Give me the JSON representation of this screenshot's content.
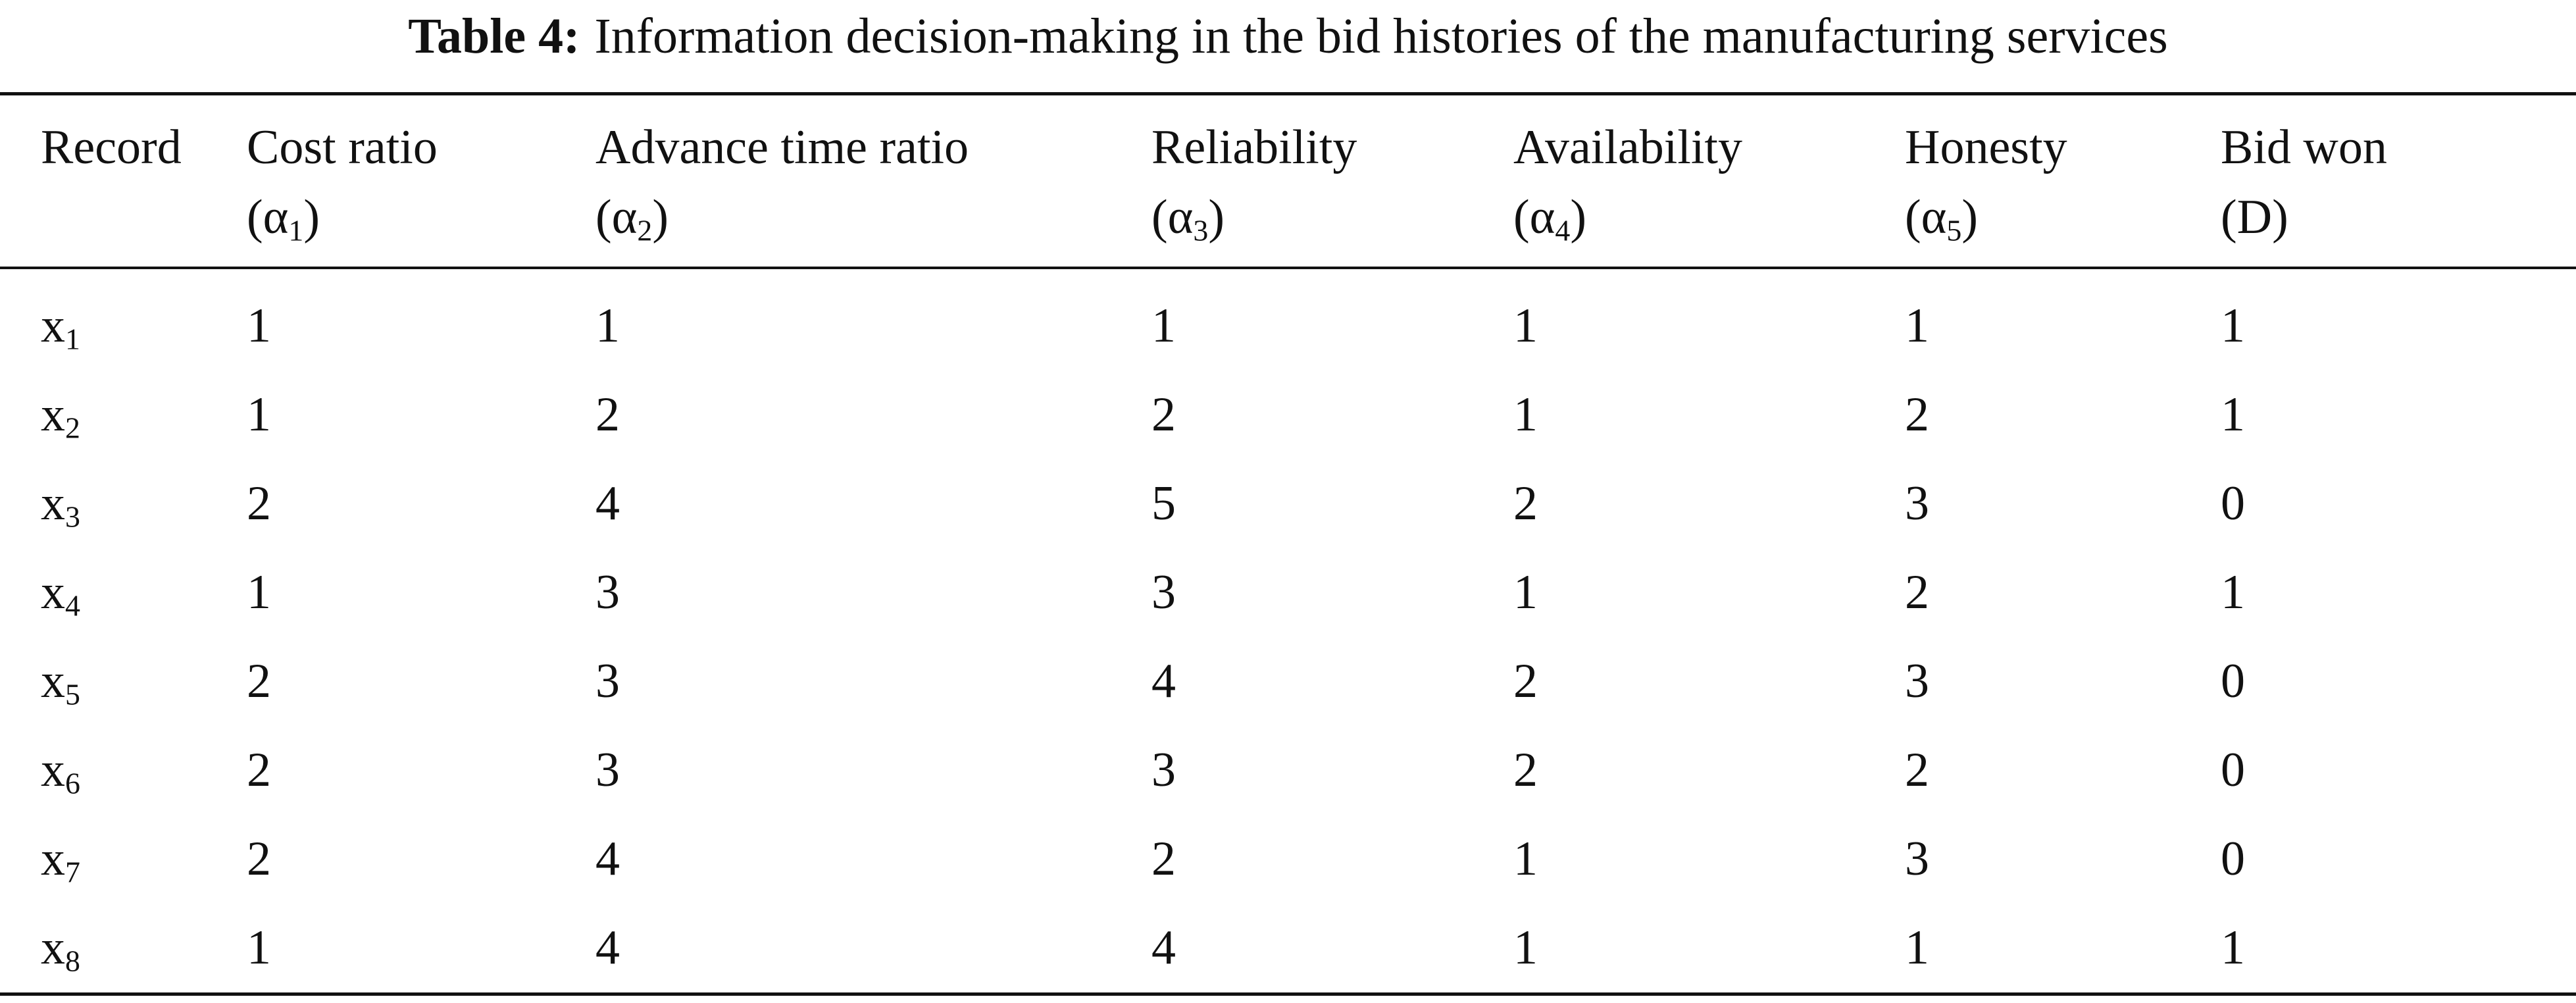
{
  "caption": {
    "label": "Table 4:",
    "text": "Information decision-making in the bid histories of the manufacturing services"
  },
  "table": {
    "headers": [
      {
        "label": "Record"
      },
      {
        "label": "Cost ratio",
        "symbol": "(α",
        "sub": "1",
        "suffix": ")"
      },
      {
        "label": "Advance time ratio",
        "symbol": "(α",
        "sub": "2",
        "suffix": ")"
      },
      {
        "label": "Reliability",
        "symbol": "(α",
        "sub": "3",
        "suffix": ")"
      },
      {
        "label": "Availability",
        "symbol": "(α",
        "sub": "4",
        "suffix": ")"
      },
      {
        "label": "Honesty",
        "symbol": "(α",
        "sub": "5",
        "suffix": ")"
      },
      {
        "label": "Bid won",
        "symbol": "(D)"
      }
    ],
    "rows": [
      {
        "record": {
          "base": "x",
          "sub": "1"
        },
        "values": [
          1,
          1,
          1,
          1,
          1,
          1
        ]
      },
      {
        "record": {
          "base": "x",
          "sub": "2"
        },
        "values": [
          1,
          2,
          2,
          1,
          2,
          1
        ]
      },
      {
        "record": {
          "base": "x",
          "sub": "3"
        },
        "values": [
          2,
          4,
          5,
          2,
          3,
          0
        ]
      },
      {
        "record": {
          "base": "x",
          "sub": "4"
        },
        "values": [
          1,
          3,
          3,
          1,
          2,
          1
        ]
      },
      {
        "record": {
          "base": "x",
          "sub": "5"
        },
        "values": [
          2,
          3,
          4,
          2,
          3,
          0
        ]
      },
      {
        "record": {
          "base": "x",
          "sub": "6"
        },
        "values": [
          2,
          3,
          3,
          2,
          2,
          0
        ]
      },
      {
        "record": {
          "base": "x",
          "sub": "7"
        },
        "values": [
          2,
          4,
          2,
          1,
          3,
          0
        ]
      },
      {
        "record": {
          "base": "x",
          "sub": "8"
        },
        "values": [
          1,
          4,
          4,
          1,
          1,
          1
        ]
      }
    ]
  }
}
